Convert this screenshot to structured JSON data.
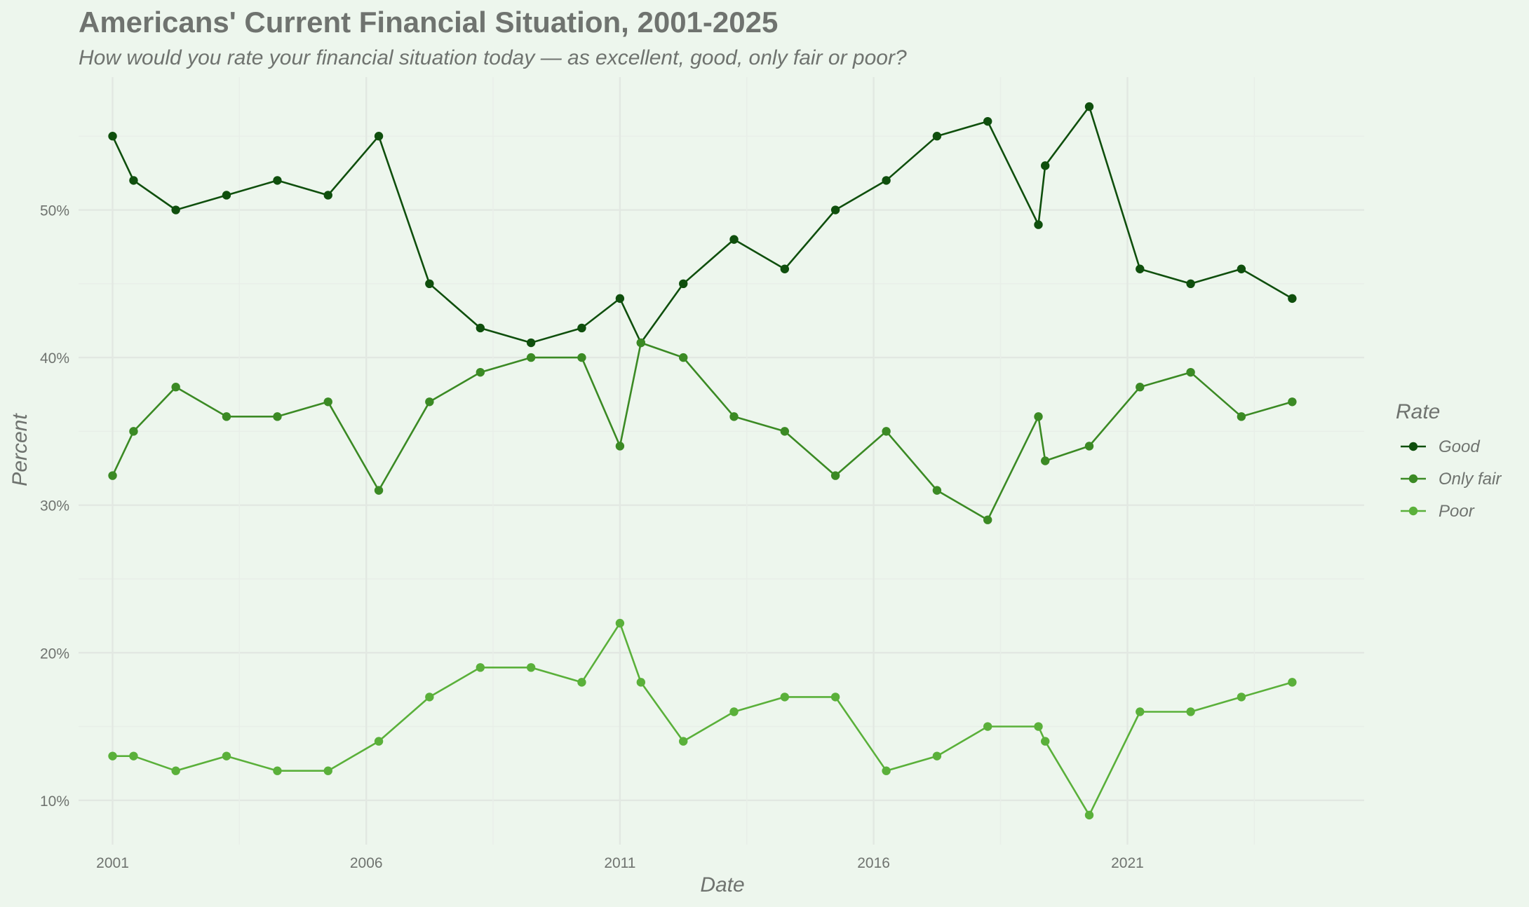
{
  "chart_data": {
    "type": "line",
    "title": "Americans' Current Financial Situation, 2001-2025",
    "subtitle": "How would you rate your financial situation today — as excellent, good, only fair or poor?",
    "xlabel": "Date",
    "ylabel": "Percent",
    "x_ticks": [
      "2001",
      "2006",
      "2011",
      "2016",
      "2021"
    ],
    "y_ticks": [
      "10%",
      "20%",
      "30%",
      "40%",
      "50%"
    ],
    "ylim": [
      7,
      59
    ],
    "xlim": [
      "2000-05-01",
      "2025-09-01"
    ],
    "grid": true,
    "legend": {
      "title": "Rate",
      "position": "right"
    },
    "x": [
      "2001-01-01",
      "2001-06-01",
      "2002-04-01",
      "2003-04-01",
      "2004-04-01",
      "2005-04-01",
      "2006-04-01",
      "2007-04-01",
      "2008-04-01",
      "2009-04-01",
      "2010-04-01",
      "2011-01-01",
      "2011-06-01",
      "2012-04-01",
      "2013-04-01",
      "2014-04-01",
      "2015-04-01",
      "2016-04-01",
      "2017-04-01",
      "2018-04-01",
      "2019-04-01",
      "2019-05-20",
      "2020-04-01",
      "2021-04-01",
      "2022-04-01",
      "2023-04-01",
      "2024-04-01"
    ],
    "series": [
      {
        "name": "Good",
        "color": "#0f4f0d",
        "values": [
          55,
          52,
          50,
          51,
          52,
          51,
          55,
          45,
          42,
          41,
          42,
          44,
          41,
          45,
          48,
          46,
          50,
          52,
          55,
          56,
          49,
          53,
          57,
          46,
          45,
          46,
          44
        ]
      },
      {
        "name": "Only fair",
        "color": "#3b8a24",
        "values": [
          32,
          35,
          38,
          36,
          36,
          37,
          31,
          37,
          39,
          40,
          40,
          34,
          41,
          40,
          36,
          35,
          32,
          35,
          31,
          29,
          36,
          33,
          34,
          38,
          39,
          36,
          37
        ]
      },
      {
        "name": "Poor",
        "color": "#5ab03a",
        "values": [
          13,
          13,
          12,
          13,
          12,
          12,
          14,
          17,
          19,
          19,
          18,
          22,
          18,
          14,
          16,
          17,
          17,
          12,
          13,
          15,
          15,
          14,
          9,
          16,
          16,
          17,
          18
        ]
      }
    ]
  }
}
